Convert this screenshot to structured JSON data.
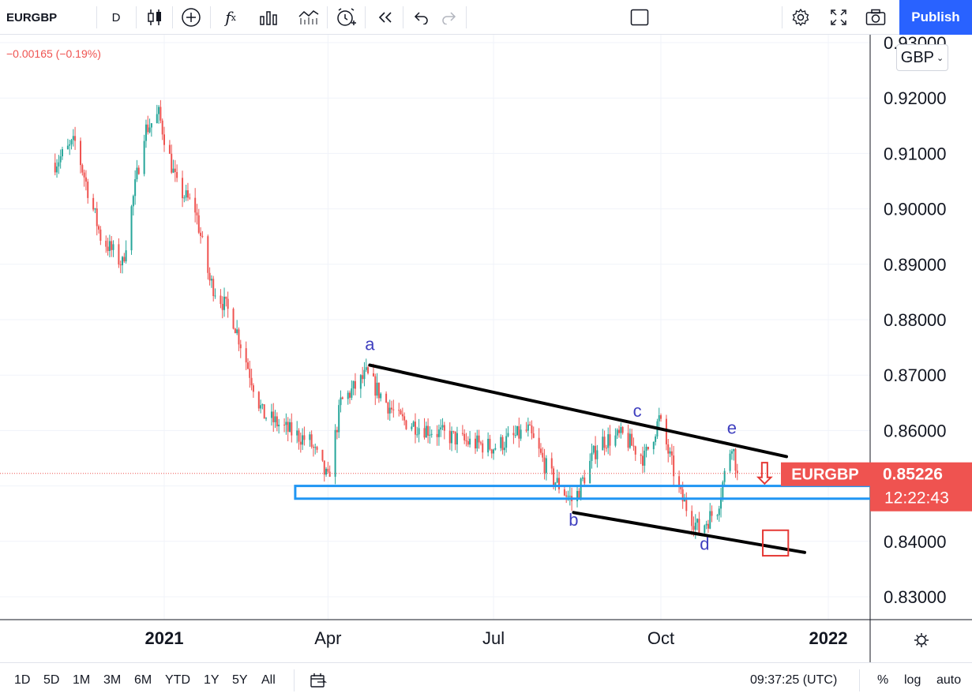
{
  "toolbar": {
    "symbol": "EURGBP",
    "interval": "D",
    "publish_label": "Publish"
  },
  "header": {
    "change_text": "−0.00165 (−0.19%)",
    "currency": "GBP"
  },
  "price_badge": {
    "symbol": "EURGBP",
    "price": "0.85226",
    "countdown": "12:22:43",
    "color": "#ef5350"
  },
  "bottombar": {
    "ranges": [
      "1D",
      "5D",
      "1M",
      "3M",
      "6M",
      "YTD",
      "1Y",
      "5Y",
      "All"
    ],
    "clock": "09:37:25 (UTC)",
    "percent_label": "%",
    "log_label": "log",
    "auto_label": "auto"
  },
  "colors": {
    "up": "#26a69a",
    "down": "#ef5350",
    "support_zone": "#2196f3",
    "trendline": "#000000",
    "wave_label": "#3f3fbf",
    "target_box": "#e53935"
  },
  "chart_data": {
    "type": "candlestick",
    "symbol": "EURGBP",
    "timeframe": "D",
    "x_ticks": [
      "2021",
      "Apr",
      "Jul",
      "Oct",
      "2022"
    ],
    "x_tick_dates": [
      "2021-01-01",
      "2021-04-01",
      "2021-07-01",
      "2021-10-01",
      "2022-01-01"
    ],
    "y_ticks": [
      "0.83000",
      "0.84000",
      "0.85000",
      "0.86000",
      "0.87000",
      "0.88000",
      "0.89000",
      "0.90000",
      "0.91000",
      "0.92000",
      "0.93000"
    ],
    "ylim": [
      0.8255,
      0.9307
    ],
    "last_price": 0.85226,
    "anchors": [
      {
        "date": "2020-11-01",
        "price": 0.908
      },
      {
        "date": "2020-11-13",
        "price": 0.912
      },
      {
        "date": "2020-11-27",
        "price": 0.895
      },
      {
        "date": "2020-12-09",
        "price": 0.89
      },
      {
        "date": "2020-12-21",
        "price": 0.914
      },
      {
        "date": "2020-12-29",
        "price": 0.917
      },
      {
        "date": "2021-01-08",
        "price": 0.904
      },
      {
        "date": "2021-01-18",
        "price": 0.9
      },
      {
        "date": "2021-01-26",
        "price": 0.887
      },
      {
        "date": "2021-02-08",
        "price": 0.88
      },
      {
        "date": "2021-02-24",
        "price": 0.863
      },
      {
        "date": "2021-03-10",
        "price": 0.86
      },
      {
        "date": "2021-03-22",
        "price": 0.858
      },
      {
        "date": "2021-04-01",
        "price": 0.851
      },
      {
        "date": "2021-04-08",
        "price": 0.865
      },
      {
        "date": "2021-04-22",
        "price": 0.87
      },
      {
        "date": "2021-05-10",
        "price": 0.862
      },
      {
        "date": "2021-05-28",
        "price": 0.86
      },
      {
        "date": "2021-06-15",
        "price": 0.858
      },
      {
        "date": "2021-07-01",
        "price": 0.857
      },
      {
        "date": "2021-07-20",
        "price": 0.86
      },
      {
        "date": "2021-08-01",
        "price": 0.852
      },
      {
        "date": "2021-08-14",
        "price": 0.847
      },
      {
        "date": "2021-08-28",
        "price": 0.858
      },
      {
        "date": "2021-09-10",
        "price": 0.859
      },
      {
        "date": "2021-09-22",
        "price": 0.855
      },
      {
        "date": "2021-09-30",
        "price": 0.862
      },
      {
        "date": "2021-10-12",
        "price": 0.848
      },
      {
        "date": "2021-10-22",
        "price": 0.842
      },
      {
        "date": "2021-11-01",
        "price": 0.846
      },
      {
        "date": "2021-11-09",
        "price": 0.858
      },
      {
        "date": "2021-11-12",
        "price": 0.8523
      }
    ],
    "annotations": {
      "wave_labels": [
        {
          "text": "a",
          "date": "2021-04-24",
          "price": 0.8745
        },
        {
          "text": "b",
          "date": "2021-08-14",
          "price": 0.8428
        },
        {
          "text": "c",
          "date": "2021-09-18",
          "price": 0.8625
        },
        {
          "text": "d",
          "date": "2021-10-25",
          "price": 0.8385
        },
        {
          "text": "e",
          "date": "2021-11-09",
          "price": 0.8594
        }
      ],
      "trendlines": [
        {
          "name": "upper-trendline",
          "from": {
            "date": "2021-04-24",
            "price": 0.8718
          },
          "to": {
            "date": "2021-12-09",
            "price": 0.8553
          }
        },
        {
          "name": "lower-trendline",
          "from": {
            "date": "2021-08-14",
            "price": 0.8452
          },
          "to": {
            "date": "2021-12-19",
            "price": 0.838
          }
        }
      ],
      "support_zone": {
        "from_date": "2021-03-14",
        "to_date": "2022-01-25",
        "price_low": 0.8477,
        "price_high": 0.85
      },
      "target_box": {
        "from_date": "2021-11-26",
        "to_date": "2021-12-10",
        "price_low": 0.8374,
        "price_high": 0.842
      },
      "down_arrow": {
        "date": "2021-11-27",
        "price_top": 0.8542,
        "price_bottom": 0.8504
      }
    }
  }
}
